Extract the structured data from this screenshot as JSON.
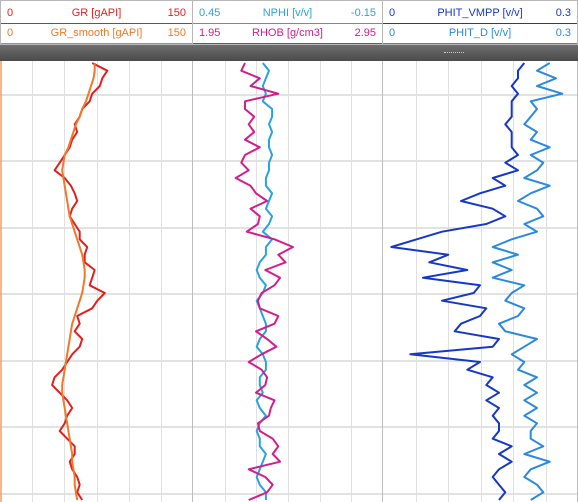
{
  "header": {
    "tracks": [
      {
        "name": "gamma-track",
        "curves": [
          {
            "name": "GR [gAPI]",
            "min": "0",
            "max": "150",
            "color": "#e02020"
          },
          {
            "name": "GR_smooth [gAPI]",
            "min": "0",
            "max": "150",
            "color": "#f07828"
          }
        ]
      },
      {
        "name": "porosity-density-track",
        "curves": [
          {
            "name": "NPHI [v/v]",
            "min": "0.45",
            "max": "-0.15",
            "color": "#29a3de"
          },
          {
            "name": "RHOB [g/cm3]",
            "min": "1.95",
            "max": "2.95",
            "color": "#d21e8c"
          }
        ]
      },
      {
        "name": "phit-track",
        "curves": [
          {
            "name": "PHIT_VMPP [v/v]",
            "min": "0",
            "max": "0.3",
            "color": "#1638c8"
          },
          {
            "name": "PHIT_D [v/v]",
            "min": "0",
            "max": "0.3",
            "color": "#2a8ae0"
          }
        ]
      }
    ]
  },
  "chart_data": {
    "type": "line",
    "title": "",
    "depth_axis": "vertical, increasing downward (no depth labels visible)",
    "tracks": [
      {
        "series": [
          {
            "name": "GR",
            "unit": "gAPI",
            "scale": [
              0,
              150
            ],
            "color": "#e02020",
            "values": [
              72,
              84,
              80,
              78,
              72,
              70,
              64,
              62,
              58,
              60,
              56,
              54,
              50,
              46,
              42,
              50,
              55,
              58,
              60,
              56,
              54,
              58,
              62,
              62,
              68,
              66,
              66,
              74,
              72,
              70,
              82,
              76,
              72,
              60,
              62,
              58,
              64,
              62,
              56,
              52,
              48,
              42,
              40,
              46,
              52,
              56,
              52,
              50,
              46,
              52,
              58,
              58,
              54,
              56,
              60,
              62,
              60,
              64
            ]
          },
          {
            "name": "GR_smooth",
            "unit": "gAPI",
            "scale": [
              0,
              150
            ],
            "color": "#f07828",
            "values": [
              74,
              74,
              73,
              71,
              69,
              67,
              64,
              62,
              59,
              57,
              55,
              53,
              50,
              49,
              48,
              49,
              50,
              51,
              52,
              53,
              54,
              56,
              58,
              60,
              62,
              64,
              65,
              66,
              66,
              65,
              64,
              62,
              60,
              58,
              56,
              55,
              54,
              53,
              52,
              51,
              50,
              49,
              48,
              48,
              49,
              50,
              51,
              52,
              53,
              54,
              55,
              56,
              56,
              57,
              58,
              58,
              59,
              60
            ]
          }
        ]
      },
      {
        "series": [
          {
            "name": "NPHI",
            "unit": "v/v",
            "scale": [
              0.45,
              -0.15
            ],
            "color": "#29a3de",
            "values": [
              0.23,
              0.21,
              0.22,
              0.23,
              0.22,
              0.23,
              0.2,
              0.2,
              0.21,
              0.2,
              0.21,
              0.21,
              0.2,
              0.21,
              0.21,
              0.22,
              0.22,
              0.2,
              0.21,
              0.22,
              0.2,
              0.21,
              0.23,
              0.2,
              0.22,
              0.22,
              0.24,
              0.25,
              0.24,
              0.22,
              0.23,
              0.25,
              0.24,
              0.23,
              0.22,
              0.22,
              0.24,
              0.25,
              0.23,
              0.22,
              0.22,
              0.24,
              0.24,
              0.23,
              0.25,
              0.24,
              0.22,
              0.24,
              0.25,
              0.24,
              0.24,
              0.22,
              0.23,
              0.24,
              0.25,
              0.24,
              0.22,
              0.22
            ]
          },
          {
            "name": "RHOB",
            "unit": "g/cm3",
            "scale": [
              1.95,
              2.95
            ],
            "color": "#d21e8c",
            "values": [
              2.22,
              2.2,
              2.3,
              2.25,
              2.4,
              2.22,
              2.22,
              2.27,
              2.24,
              2.27,
              2.22,
              2.3,
              2.22,
              2.2,
              2.24,
              2.17,
              2.25,
              2.28,
              2.34,
              2.25,
              2.3,
              2.29,
              2.23,
              2.38,
              2.48,
              2.4,
              2.44,
              2.33,
              2.41,
              2.38,
              2.31,
              2.29,
              2.3,
              2.4,
              2.38,
              2.28,
              2.34,
              2.39,
              2.31,
              2.24,
              2.31,
              2.34,
              2.33,
              2.28,
              2.38,
              2.36,
              2.35,
              2.29,
              2.3,
              2.37,
              2.4,
              2.37,
              2.41,
              2.24,
              2.33,
              2.37,
              2.34,
              2.24
            ]
          }
        ]
      },
      {
        "series": [
          {
            "name": "PHIT_VMPP",
            "unit": "v/v",
            "scale": [
              0,
              0.3
            ],
            "color": "#1638c8",
            "values": [
              0.22,
              0.21,
              0.21,
              0.2,
              0.21,
              0.2,
              0.2,
              0.2,
              0.19,
              0.2,
              0.2,
              0.2,
              0.21,
              0.19,
              0.21,
              0.17,
              0.19,
              0.15,
              0.12,
              0.17,
              0.19,
              0.16,
              0.09,
              0.05,
              0.01,
              0.1,
              0.07,
              0.13,
              0.06,
              0.15,
              0.14,
              0.09,
              0.16,
              0.15,
              0.12,
              0.11,
              0.18,
              0.17,
              0.04,
              0.15,
              0.13,
              0.17,
              0.16,
              0.18,
              0.16,
              0.18,
              0.17,
              0.18,
              0.18,
              0.17,
              0.2,
              0.18,
              0.2,
              0.18,
              0.17,
              0.18,
              0.19,
              0.18
            ]
          },
          {
            "name": "PHIT_D",
            "unit": "v/v",
            "scale": [
              0,
              0.3
            ],
            "color": "#2a8ae0",
            "values": [
              0.26,
              0.24,
              0.27,
              0.24,
              0.28,
              0.23,
              0.24,
              0.23,
              0.22,
              0.24,
              0.23,
              0.26,
              0.23,
              0.25,
              0.24,
              0.22,
              0.26,
              0.23,
              0.21,
              0.24,
              0.25,
              0.22,
              0.24,
              0.2,
              0.17,
              0.21,
              0.17,
              0.2,
              0.17,
              0.22,
              0.2,
              0.19,
              0.22,
              0.21,
              0.18,
              0.19,
              0.24,
              0.22,
              0.2,
              0.22,
              0.21,
              0.24,
              0.22,
              0.24,
              0.22,
              0.24,
              0.22,
              0.24,
              0.23,
              0.23,
              0.25,
              0.22,
              0.26,
              0.23,
              0.22,
              0.24,
              0.25,
              0.23
            ]
          }
        ]
      }
    ]
  }
}
